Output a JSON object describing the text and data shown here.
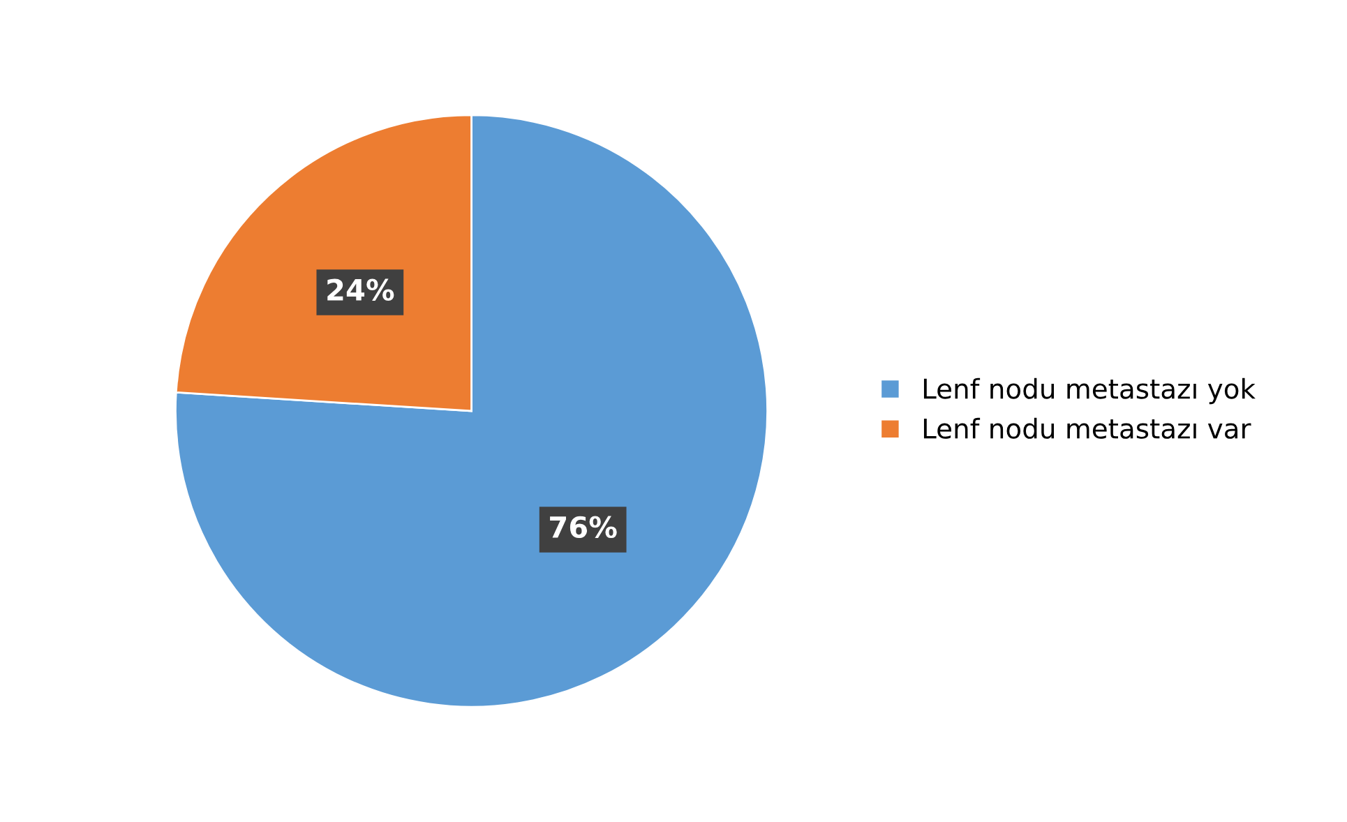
{
  "chart_data": {
    "type": "pie",
    "categories": [
      "Lenf nodu metastazı yok",
      "Lenf nodu metastazı var"
    ],
    "values": [
      76,
      24
    ],
    "colors": [
      "#5b9bd5",
      "#ed7d31"
    ],
    "value_labels": [
      "76%",
      "24%"
    ],
    "legend": "right"
  }
}
